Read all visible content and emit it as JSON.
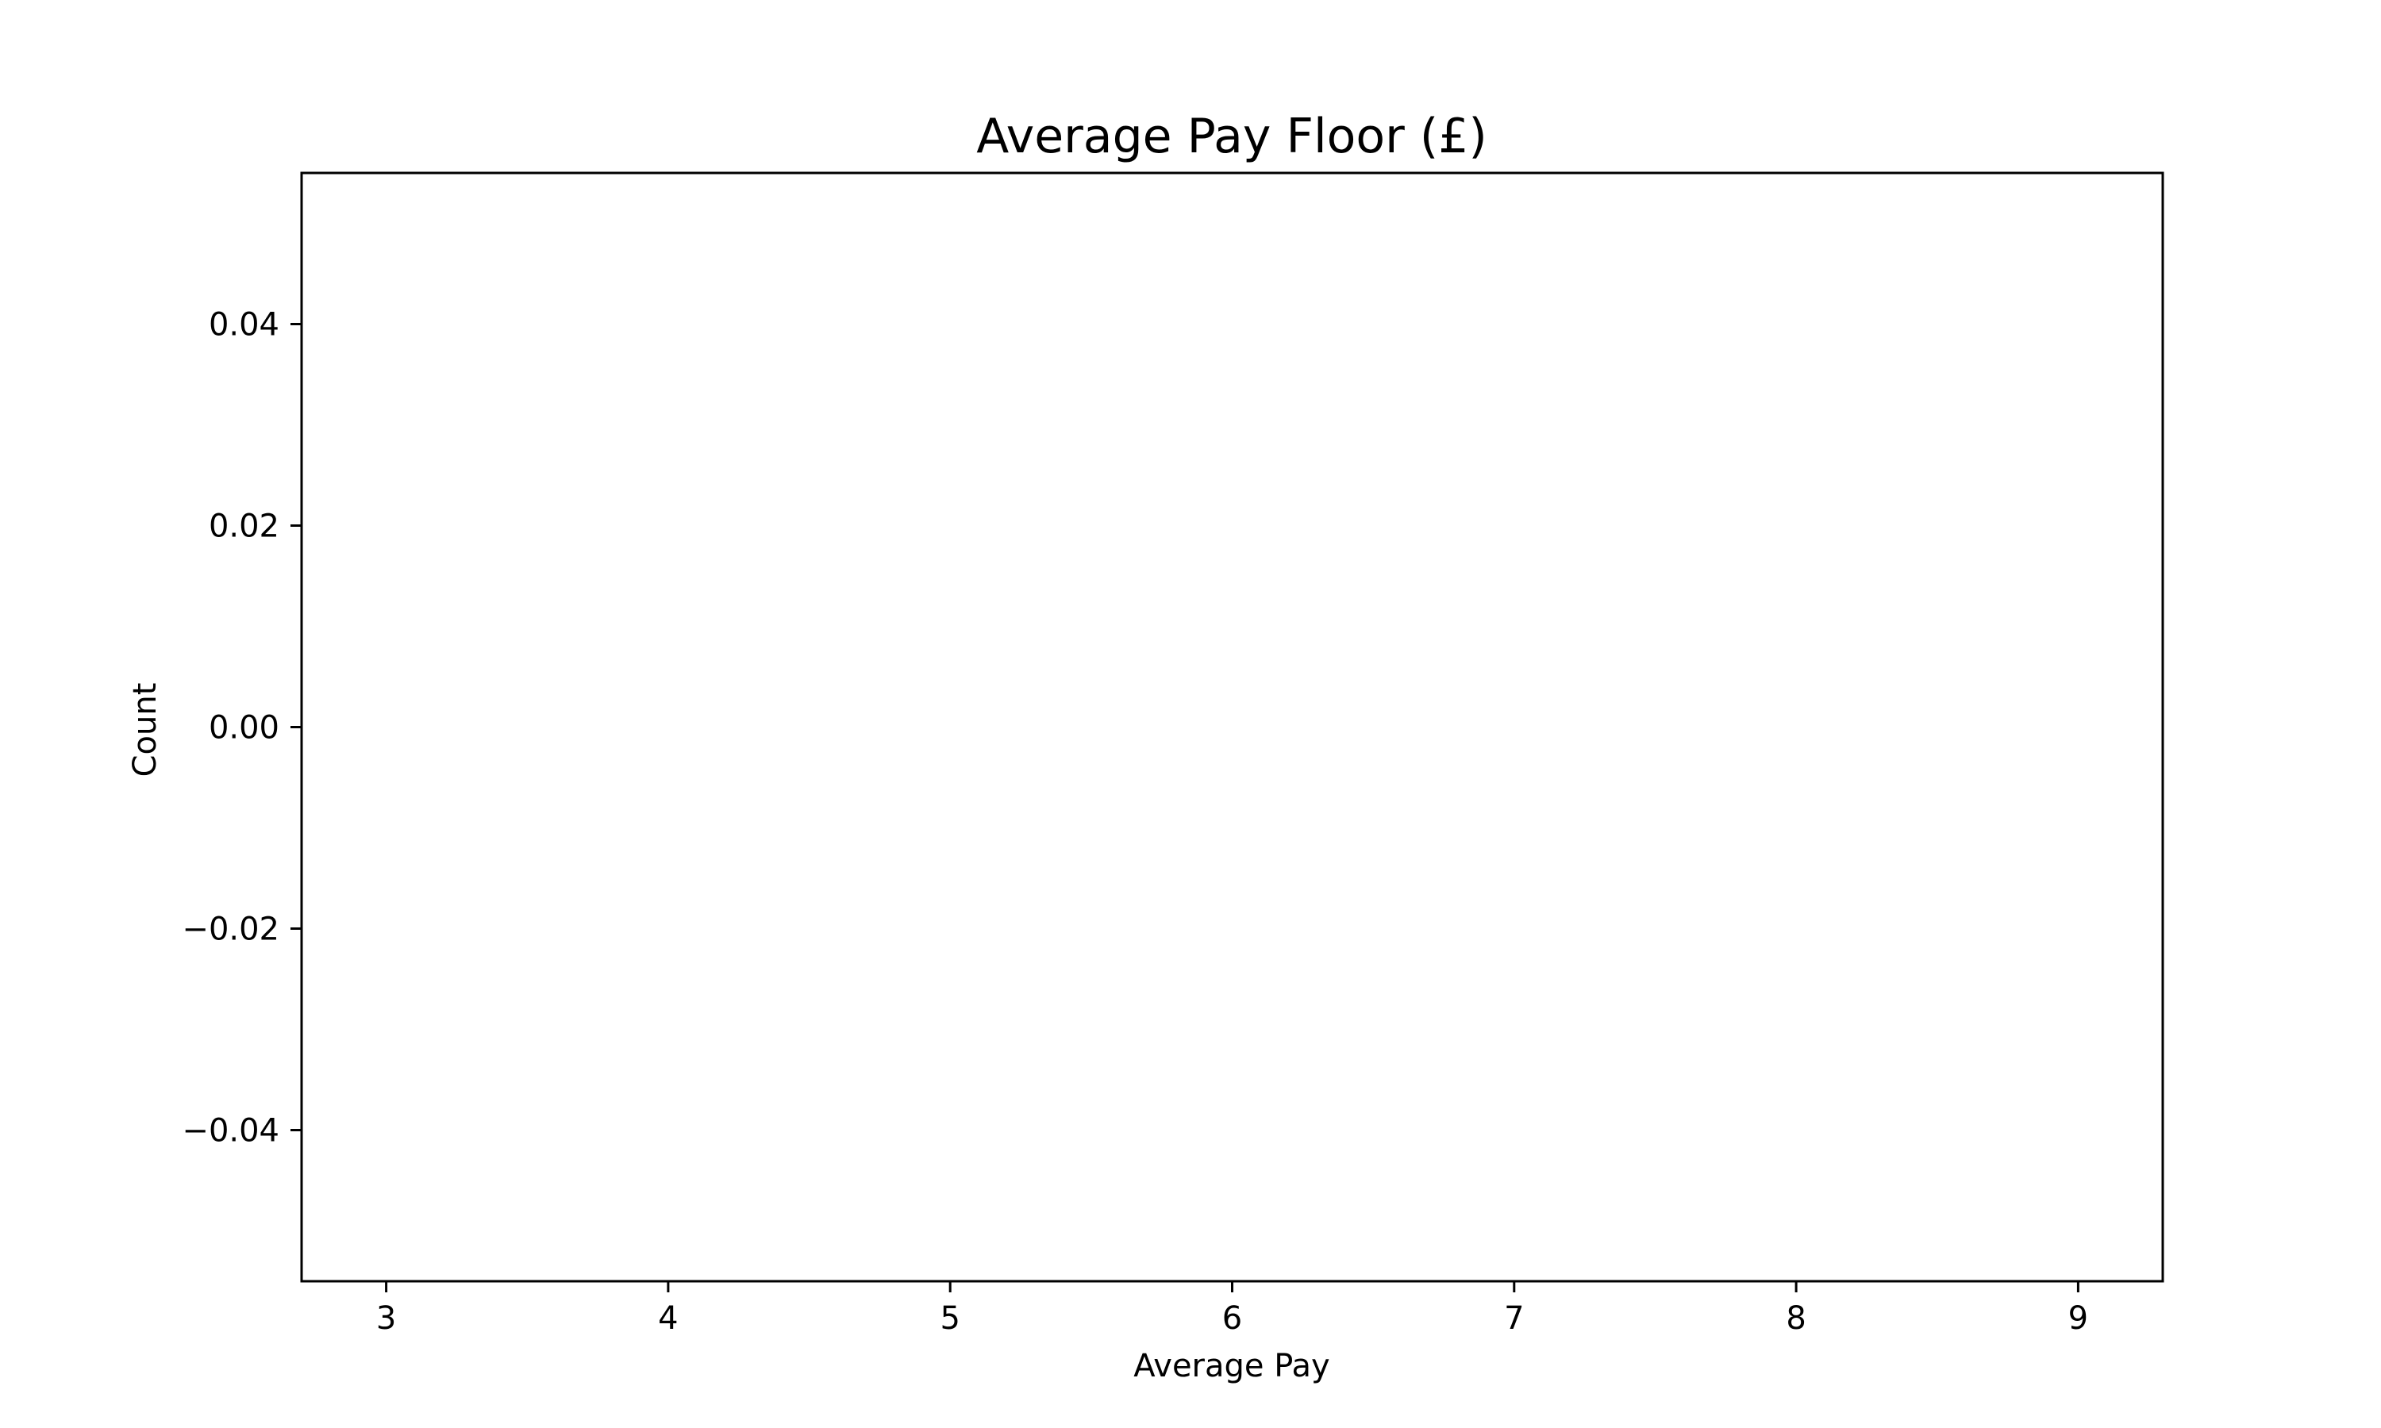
{
  "chart_data": {
    "type": "bar",
    "title": "Average Pay Floor (£)",
    "xlabel": "Average Pay",
    "ylabel": "Count",
    "xlim": [
      2.7,
      9.3
    ],
    "ylim": [
      -0.055,
      0.055
    ],
    "x_ticks": [
      3,
      4,
      5,
      6,
      7,
      8,
      9
    ],
    "x_tick_labels": [
      "3",
      "4",
      "5",
      "6",
      "7",
      "8",
      "9"
    ],
    "y_ticks": [
      -0.04,
      -0.02,
      0.0,
      0.02,
      0.04
    ],
    "y_tick_labels": [
      "−0.04",
      "−0.02",
      "0.00",
      "0.02",
      "0.04"
    ],
    "grid": false,
    "series": [
      {
        "values": []
      }
    ]
  }
}
